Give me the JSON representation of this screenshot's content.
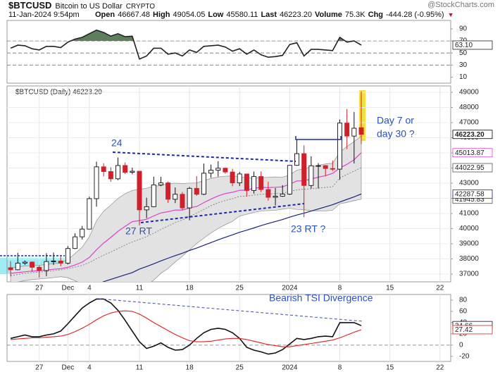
{
  "header": {
    "symbol": "$BTCUSD",
    "name": "Bitcoin to US Dollar",
    "exchange": "CRYPTO",
    "date": "11-Jan-2024 9:54pm",
    "stats": [
      {
        "label": "Open",
        "value": "46667.48"
      },
      {
        "label": "High",
        "value": "49054.05"
      },
      {
        "label": "Low",
        "value": "45580.11"
      },
      {
        "label": "Last",
        "value": "46223.20"
      },
      {
        "label": "Volume",
        "value": "75.3K"
      },
      {
        "label": "Chg",
        "value": "-444.28 (-0.95%)"
      }
    ],
    "credit": "@StockCharts.com"
  },
  "chart_data": [
    {
      "type": "line",
      "ylim": [
        0,
        104
      ],
      "yticks": [
        90,
        70,
        50,
        30,
        10
      ],
      "reference_lines": [
        70,
        50,
        30
      ],
      "grid": false,
      "series": [
        {
          "color": "#222222",
          "fill_above": 70,
          "fill_below": 30,
          "fill_color": "#5e7f5e",
          "last_label": "63.10",
          "values": [
            58,
            63,
            62,
            57,
            55,
            61,
            61,
            59,
            68,
            73,
            76,
            82,
            88,
            84,
            78,
            82,
            77,
            78,
            40,
            45,
            58,
            58,
            48,
            50,
            45,
            55,
            51,
            61,
            62,
            63,
            60,
            53,
            57,
            48,
            55,
            47,
            43,
            44,
            46,
            64,
            67,
            45,
            56,
            56,
            55,
            54,
            76,
            68,
            70,
            63.1,
            null,
            null,
            null,
            null,
            null,
            null,
            null,
            null,
            null,
            null,
            null,
            null
          ]
        }
      ]
    },
    {
      "type": "candlestick",
      "title": "$BTCUSD (Daily) 46223.20",
      "ylim": [
        36490,
        49420
      ],
      "yticks": [
        49000,
        48000,
        47000,
        46000,
        45000,
        44000,
        43000,
        42000,
        41000,
        40000,
        39000,
        38000,
        37000
      ],
      "grid": true,
      "categories": [
        null,
        null,
        null,
        null,
        "27",
        null,
        null,
        null,
        "Dec",
        null,
        null,
        "4",
        null,
        null,
        null,
        null,
        null,
        null,
        "11",
        null,
        null,
        null,
        null,
        null,
        null,
        "18",
        null,
        null,
        null,
        null,
        null,
        null,
        "25",
        null,
        null,
        null,
        null,
        null,
        null,
        "2024",
        null,
        null,
        null,
        null,
        null,
        null,
        "8",
        null,
        null,
        null,
        null,
        null,
        null,
        "15",
        null,
        null,
        null,
        null,
        null,
        null,
        "22",
        null
      ],
      "candles": {
        "up_color": "#111111",
        "down_color": "#d0202a",
        "last_label": "46223.20",
        "open": [
          37420,
          37290,
          37720,
          37790,
          37450,
          37240,
          37830,
          37860,
          37720,
          38690,
          39460,
          39970,
          41980,
          44080,
          43770,
          43290,
          44170,
          43720,
          43790,
          41240,
          41450,
          42890,
          43020,
          41940,
          42270,
          41370,
          42660,
          42270,
          43660,
          43860,
          43990,
          43740,
          43020,
          43610,
          42520,
          43440,
          42580,
          42070,
          42140,
          42280,
          44180,
          44950,
          42850,
          44150,
          44160,
          43970,
          43930,
          46970,
          46110,
          46667.48,
          null,
          null,
          null,
          null,
          null,
          null,
          null,
          null,
          null,
          null,
          null,
          null
        ],
        "high": [
          37850,
          38400,
          37900,
          37840,
          37570,
          38380,
          38420,
          38150,
          38850,
          39690,
          40180,
          42110,
          44420,
          44320,
          44050,
          44700,
          44370,
          44030,
          43790,
          42040,
          43430,
          43420,
          43110,
          42720,
          42420,
          42760,
          43470,
          44290,
          44230,
          44450,
          44040,
          43950,
          43750,
          43620,
          43770,
          43780,
          43100,
          42680,
          42870,
          44200,
          45900,
          45500,
          44770,
          44330,
          44200,
          44500,
          47200,
          47900,
          47700,
          49054.05,
          null,
          null,
          null,
          null,
          null,
          null,
          null,
          null,
          null,
          null,
          null,
          null
        ],
        "low": [
          36850,
          37250,
          37600,
          37150,
          36770,
          36860,
          37600,
          37520,
          37630,
          38650,
          39280,
          39970,
          41450,
          43450,
          43100,
          43200,
          43600,
          43590,
          40200,
          40690,
          41430,
          42800,
          41700,
          41690,
          41250,
          40550,
          42170,
          42210,
          43360,
          43440,
          43630,
          42800,
          42810,
          42120,
          42310,
          42410,
          41850,
          41530,
          42100,
          42230,
          44150,
          40750,
          42650,
          42650,
          43450,
          43800,
          43220,
          45250,
          44300,
          45580.11,
          null,
          null,
          null,
          null,
          null,
          null,
          null,
          null,
          null,
          null,
          null,
          null
        ],
        "close": [
          37290,
          37720,
          37790,
          37450,
          37240,
          37830,
          37860,
          37720,
          38690,
          39460,
          39970,
          41980,
          44080,
          43770,
          43290,
          44170,
          43720,
          43790,
          41240,
          41450,
          42890,
          43020,
          41940,
          42270,
          41370,
          42660,
          42270,
          43660,
          43860,
          43990,
          43740,
          43020,
          43610,
          42520,
          43440,
          42580,
          42070,
          42140,
          42280,
          44180,
          44950,
          42850,
          44150,
          44160,
          43970,
          43930,
          46970,
          46110,
          46630,
          46223.2,
          null,
          null,
          null,
          null,
          null,
          null,
          null,
          null,
          null,
          null,
          null,
          null
        ]
      },
      "bands": {
        "color": "#9a9a9a",
        "fill": "#e2e2e2",
        "middle_label": "44022.95",
        "lower_label": "41945.83",
        "upper": [
          37400,
          37480,
          37530,
          37560,
          37580,
          37640,
          37690,
          37730,
          37960,
          38360,
          38780,
          39460,
          40520,
          41150,
          41560,
          41990,
          42320,
          42520,
          42590,
          42670,
          42800,
          42850,
          42970,
          43000,
          42980,
          43000,
          43020,
          43170,
          43320,
          43410,
          43460,
          43480,
          43430,
          43350,
          43370,
          43370,
          43390,
          43410,
          43390,
          43550,
          43860,
          43950,
          44080,
          44180,
          44270,
          44320,
          45050,
          45430,
          45750,
          46100.07,
          null,
          null,
          null,
          null,
          null,
          null,
          null,
          null,
          null,
          null,
          null,
          null
        ],
        "middle": [
          36900,
          36980,
          37050,
          37100,
          37130,
          37180,
          37230,
          37280,
          37360,
          37460,
          37580,
          37760,
          38020,
          38250,
          38460,
          38690,
          38920,
          39120,
          39290,
          39470,
          39700,
          39950,
          40170,
          40400,
          40580,
          40800,
          41020,
          41270,
          41520,
          41710,
          41860,
          41980,
          42130,
          42150,
          42220,
          42270,
          42290,
          42310,
          42340,
          42450,
          42560,
          42600,
          42630,
          42680,
          42720,
          42770,
          43350,
          43580,
          43800,
          44022.95,
          null,
          null,
          null,
          null,
          null,
          null,
          null,
          null,
          null,
          null,
          null,
          null
        ],
        "lower": [
          36400,
          36480,
          36570,
          36640,
          36680,
          36720,
          36770,
          36830,
          36760,
          36560,
          36380,
          36060,
          35520,
          35350,
          35360,
          35390,
          35520,
          35720,
          35990,
          36270,
          36600,
          37050,
          37370,
          37800,
          38180,
          38600,
          39020,
          39370,
          39720,
          40010,
          40260,
          40480,
          40830,
          40950,
          41070,
          41170,
          41190,
          41210,
          41290,
          41350,
          41260,
          41250,
          41180,
          41180,
          41170,
          41220,
          41650,
          41730,
          41850,
          41945.83,
          null,
          null,
          null,
          null,
          null,
          null,
          null,
          null,
          null,
          null,
          null,
          null
        ]
      },
      "overlays": [
        {
          "color": "#e040d0",
          "last_label": "45013.87",
          "values": [
            37050,
            37100,
            37150,
            37200,
            37220,
            37270,
            37320,
            37360,
            37450,
            37600,
            37790,
            38100,
            38600,
            39050,
            39420,
            39820,
            40150,
            40460,
            40530,
            40620,
            40840,
            41040,
            41120,
            41230,
            41230,
            41370,
            41460,
            41720,
            41950,
            42160,
            42320,
            42400,
            42530,
            42540,
            42670,
            42720,
            42720,
            42730,
            42760,
            42930,
            43150,
            43160,
            43280,
            43400,
            43500,
            43650,
            44000,
            44250,
            44550,
            45013.87,
            null,
            null,
            null,
            null,
            null,
            null,
            null,
            null,
            null,
            null,
            null,
            null
          ]
        },
        {
          "color": "#1a237e",
          "last_label": "42287.58",
          "values": [
            null,
            null,
            null,
            null,
            null,
            null,
            null,
            null,
            null,
            null,
            null,
            null,
            36300,
            36500,
            36650,
            36800,
            36950,
            37100,
            37330,
            37500,
            37680,
            37870,
            38050,
            38220,
            38380,
            38560,
            38720,
            38900,
            39080,
            39260,
            39430,
            39590,
            39760,
            39900,
            40050,
            40200,
            40340,
            40470,
            40600,
            40760,
            40900,
            41020,
            41160,
            41300,
            41440,
            41580,
            41760,
            41930,
            42100,
            42287.58,
            null,
            null,
            null,
            null,
            null,
            null,
            null,
            null,
            null,
            null,
            null,
            null
          ]
        }
      ],
      "annotations": [
        "24",
        "27 RT",
        "23 RT  ?",
        "Day 7 or",
        "day 30 ?"
      ]
    },
    {
      "type": "line",
      "ylim": [
        -29,
        90
      ],
      "yticks": [
        80,
        60,
        40,
        20,
        0,
        -20
      ],
      "reference_lines": [
        0
      ],
      "grid": false,
      "categories": [
        null,
        null,
        null,
        null,
        "27",
        null,
        null,
        null,
        "Dec",
        null,
        null,
        "4",
        null,
        null,
        null,
        null,
        null,
        null,
        "11",
        null,
        null,
        null,
        null,
        null,
        null,
        "18",
        null,
        null,
        null,
        null,
        null,
        null,
        "25",
        null,
        null,
        null,
        null,
        null,
        null,
        "2024",
        null,
        null,
        null,
        null,
        null,
        null,
        "8",
        null,
        null,
        null,
        null,
        null,
        null,
        "15",
        null,
        null,
        null,
        null,
        null,
        null,
        "22",
        null
      ],
      "series": [
        {
          "color": "#111111",
          "last_label": "34.66",
          "values": [
            12,
            15,
            18,
            15,
            15,
            18,
            20,
            25,
            38,
            52,
            66,
            75,
            82,
            82,
            75,
            62,
            44,
            25,
            6,
            -6,
            -2,
            4,
            -4,
            -9,
            -8,
            0,
            12,
            22,
            28,
            30,
            28,
            22,
            12,
            -4,
            -9,
            -12,
            -16,
            -14,
            -8,
            2,
            12,
            10,
            12,
            15,
            16,
            15,
            40,
            40,
            40,
            34.66,
            null,
            null,
            null,
            null,
            null,
            null,
            null,
            null,
            null,
            null,
            null,
            null
          ]
        },
        {
          "color": "#e02020",
          "last_label": "27.42",
          "values": [
            10,
            11,
            12,
            13,
            13,
            14,
            15,
            16,
            19,
            24,
            30,
            37,
            45,
            52,
            57,
            60,
            61,
            60,
            55,
            48,
            40,
            33,
            26,
            19,
            13,
            8,
            6,
            6,
            7,
            9,
            11,
            12,
            12,
            10,
            7,
            4,
            1,
            -1,
            -3,
            -3,
            -1,
            1,
            3,
            5,
            7,
            9,
            13,
            18,
            23,
            27.42,
            null,
            null,
            null,
            null,
            null,
            null,
            null,
            null,
            null,
            null,
            null,
            null
          ]
        }
      ],
      "annotations": [
        "Bearish TSI Divergence"
      ]
    }
  ]
}
